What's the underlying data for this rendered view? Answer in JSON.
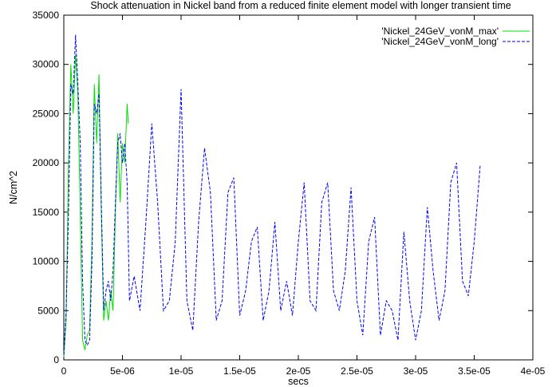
{
  "chart_data": {
    "type": "line",
    "title": "Shock attenuation in Nickel band from a reduced finite element model with longer transient time",
    "xlabel": "secs",
    "ylabel": "N/cm^2",
    "xlim": [
      0,
      4e-05
    ],
    "ylim": [
      0,
      35000
    ],
    "xticks": [
      0,
      5e-06,
      1e-05,
      1.5e-05,
      2e-05,
      2.5e-05,
      3e-05,
      3.5e-05,
      4e-05
    ],
    "xtick_labels": [
      "0",
      "5e-06",
      "1e-05",
      "1.5e-05",
      "2e-05",
      "2.5e-05",
      "3e-05",
      "3.5e-05",
      "4e-05"
    ],
    "yticks": [
      0,
      5000,
      10000,
      15000,
      20000,
      25000,
      30000,
      35000
    ],
    "ytick_labels": [
      "0",
      "5000",
      "10000",
      "15000",
      "20000",
      "25000",
      "30000",
      "35000"
    ],
    "grid": false,
    "legend_position": "top-right",
    "series": [
      {
        "name": "'Nickel_24GeV_vonM_max'",
        "color": "#00e000",
        "dash": "solid",
        "x": [
          0,
          2e-07,
          4e-07,
          6e-07,
          8e-07,
          1e-06,
          1.2e-06,
          1.4e-06,
          1.6e-06,
          1.8e-06,
          2e-06,
          2.2e-06,
          2.4e-06,
          2.6e-06,
          2.8e-06,
          3e-06,
          3.2e-06,
          3.4e-06,
          3.6e-06,
          3.8e-06,
          4e-06,
          4.2e-06,
          4.4e-06,
          4.6e-06,
          4.8e-06,
          5e-06,
          5.2e-06,
          5.4e-06,
          5.5e-06
        ],
        "y": [
          300,
          4000,
          20000,
          30000,
          25000,
          31000,
          27000,
          15000,
          2000,
          1000,
          2500,
          3000,
          12000,
          28000,
          22000,
          29000,
          15000,
          4000,
          6000,
          4000,
          7000,
          5000,
          15000,
          23000,
          16000,
          22000,
          20000,
          26000,
          24000
        ]
      },
      {
        "name": "'Nickel_24GeV_vonM_long'",
        "color": "#0000ff",
        "dash": "dashed",
        "x": [
          0,
          2e-07,
          4e-07,
          6e-07,
          8e-07,
          1e-06,
          1.2e-06,
          1.4e-06,
          1.6e-06,
          1.8e-06,
          2e-06,
          2.2e-06,
          2.4e-06,
          2.6e-06,
          2.8e-06,
          3e-06,
          3.2e-06,
          3.4e-06,
          3.6e-06,
          3.8e-06,
          4e-06,
          4.2e-06,
          4.4e-06,
          4.6e-06,
          4.8e-06,
          5e-06,
          5.2e-06,
          5.4e-06,
          5.6e-06,
          6e-06,
          6.5e-06,
          7e-06,
          7.5e-06,
          8e-06,
          8.5e-06,
          9e-06,
          9.5e-06,
          1e-05,
          1.05e-05,
          1.1e-05,
          1.15e-05,
          1.2e-05,
          1.25e-05,
          1.3e-05,
          1.35e-05,
          1.4e-05,
          1.45e-05,
          1.5e-05,
          1.55e-05,
          1.6e-05,
          1.65e-05,
          1.7e-05,
          1.75e-05,
          1.8e-05,
          1.85e-05,
          1.9e-05,
          1.95e-05,
          2e-05,
          2.05e-05,
          2.1e-05,
          2.15e-05,
          2.2e-05,
          2.25e-05,
          2.3e-05,
          2.35e-05,
          2.4e-05,
          2.45e-05,
          2.5e-05,
          2.55e-05,
          2.6e-05,
          2.65e-05,
          2.7e-05,
          2.75e-05,
          2.8e-05,
          2.85e-05,
          2.9e-05,
          2.95e-05,
          3e-05,
          3.05e-05,
          3.1e-05,
          3.15e-05,
          3.2e-05,
          3.25e-05,
          3.3e-05,
          3.35e-05,
          3.4e-05,
          3.45e-05,
          3.5e-05,
          3.55e-05
        ],
        "y": [
          500,
          5000,
          15000,
          28000,
          27000,
          33000,
          28000,
          22000,
          8000,
          2000,
          1500,
          2000,
          10000,
          26000,
          25000,
          27000,
          16000,
          5000,
          7000,
          8000,
          6000,
          9000,
          16000,
          22000,
          23000,
          20000,
          22000,
          18000,
          6000,
          8500,
          5000,
          14000,
          24000,
          16000,
          5000,
          6000,
          12000,
          27500,
          6000,
          3000,
          14000,
          21500,
          17000,
          4000,
          6000,
          17000,
          18500,
          4500,
          7000,
          12000,
          13500,
          4000,
          7000,
          14000,
          5000,
          8000,
          4500,
          12000,
          18000,
          6000,
          5000,
          16000,
          18000,
          7000,
          5000,
          9000,
          17500,
          6000,
          2500,
          12000,
          14500,
          2500,
          6000,
          5000,
          2000,
          13000,
          6000,
          2000,
          5000,
          15500,
          9000,
          4000,
          7000,
          18000,
          20000,
          8000,
          6500,
          12000,
          19700
        ]
      }
    ]
  }
}
